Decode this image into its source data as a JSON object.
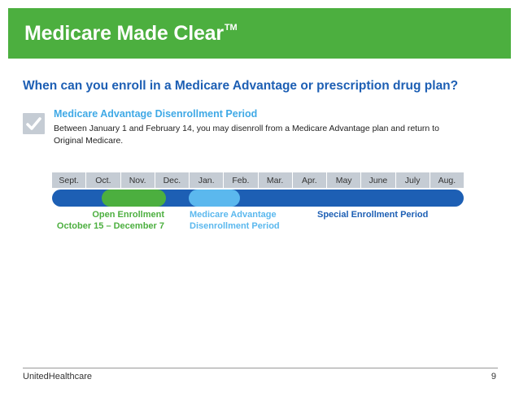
{
  "header": {
    "title": "Medicare Made Clear",
    "trademark": "TM",
    "background_color": "#4caf3f"
  },
  "question": "When can you enroll in a Medicare Advantage or prescription drug plan?",
  "disenrollment": {
    "icon": "checkmark-icon",
    "title": "Medicare Advantage Disenrollment Period",
    "description": "Between January 1 and February 14, you may disenroll from a Medicare Advantage plan and return to Original Medicare."
  },
  "timeline": {
    "months": [
      "Sept.",
      "Oct.",
      "Nov.",
      "Dec.",
      "Jan.",
      "Feb.",
      "Mar.",
      "Apr.",
      "May",
      "June",
      "July",
      "Aug."
    ],
    "colors": {
      "special": "#1d5fb4",
      "open": "#4caf3f",
      "disenrollment": "#5bb8ee"
    },
    "labels": {
      "open_line1": "Open Enrollment",
      "open_line2": "October 15 – December 7",
      "mad_line1": "Medicare Advantage",
      "mad_line2": "Disenrollment Period",
      "special": "Special Enrollment Period"
    }
  },
  "footer": {
    "brand": "UnitedHealthcare",
    "page_number": "9"
  }
}
